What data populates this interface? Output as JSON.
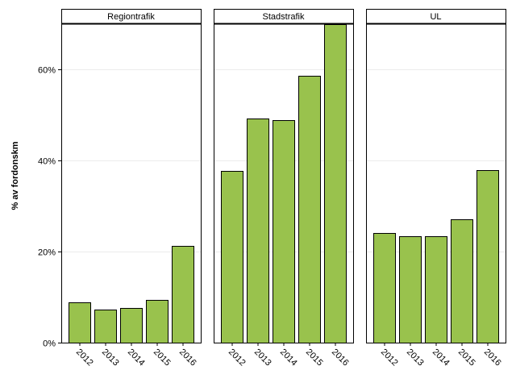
{
  "chart_data": {
    "type": "bar",
    "ylabel": "% av fordonskm",
    "xlabel": "",
    "ylim": [
      0,
      0.7
    ],
    "y_ticks": [
      {
        "value": 0,
        "label": "0%"
      },
      {
        "value": 0.2,
        "label": "20%"
      },
      {
        "value": 0.4,
        "label": "40%"
      },
      {
        "value": 0.6,
        "label": "60%"
      }
    ],
    "grid": true,
    "bar_color": "#99c24d",
    "categories": [
      "2012",
      "2013",
      "2014",
      "2015",
      "2016"
    ],
    "panels": [
      {
        "name": "Regiontrafik",
        "values": [
          0.089,
          0.072,
          0.076,
          0.093,
          0.213
        ]
      },
      {
        "name": "Stadstrafik",
        "values": [
          0.376,
          0.491,
          0.487,
          0.585,
          0.699
        ]
      },
      {
        "name": "UL",
        "values": [
          0.241,
          0.233,
          0.234,
          0.271,
          0.379
        ]
      }
    ]
  }
}
